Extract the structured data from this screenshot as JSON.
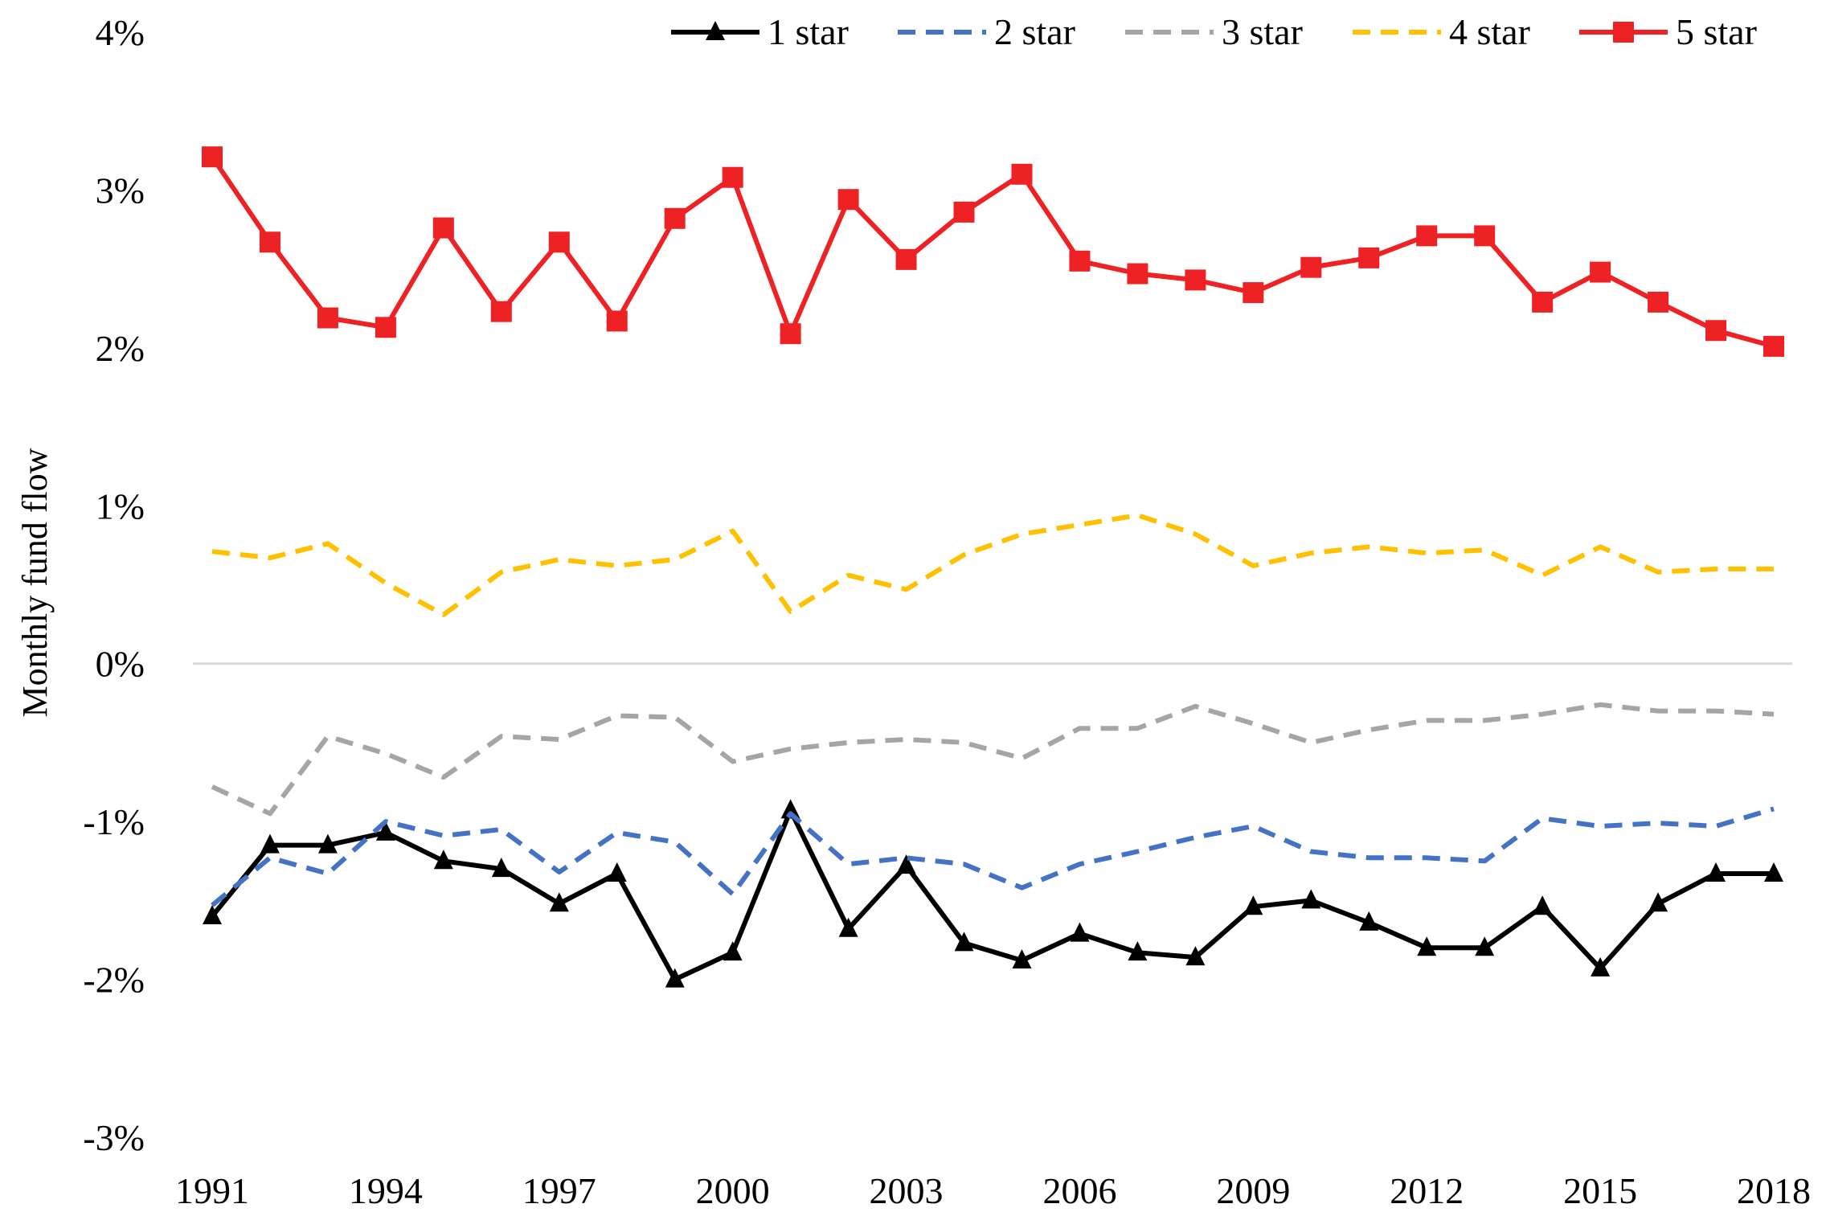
{
  "chart_data": {
    "type": "line",
    "title": "",
    "xlabel": "",
    "ylabel": "Monthly fund flow",
    "ylim": [
      -0.03,
      0.04
    ],
    "yticks": [
      {
        "value": 0.04,
        "label": "4%"
      },
      {
        "value": 0.03,
        "label": "3%"
      },
      {
        "value": 0.02,
        "label": "2%"
      },
      {
        "value": 0.01,
        "label": "1%"
      },
      {
        "value": 0.0,
        "label": "0%"
      },
      {
        "value": -0.01,
        "label": "-1%"
      },
      {
        "value": -0.02,
        "label": "-2%"
      },
      {
        "value": -0.03,
        "label": "-3%"
      }
    ],
    "xticks": [
      "1991",
      "1994",
      "1997",
      "2000",
      "2003",
      "2006",
      "2009",
      "2012",
      "2015",
      "2018"
    ],
    "x": [
      1991,
      1992,
      1993,
      1994,
      1995,
      1996,
      1997,
      1998,
      1999,
      2000,
      2001,
      2002,
      2003,
      2004,
      2005,
      2006,
      2007,
      2008,
      2009,
      2010,
      2011,
      2012,
      2013,
      2014,
      2015,
      2016,
      2017,
      2018
    ],
    "grid": false,
    "zero_line": true,
    "legend_position": "top",
    "series": [
      {
        "name": "1 star",
        "color": "#000000",
        "style": "solid",
        "marker": "triangle",
        "values": [
          -0.016,
          -0.0115,
          -0.0115,
          -0.0107,
          -0.0125,
          -0.013,
          -0.0152,
          -0.0133,
          -0.02,
          -0.0183,
          -0.0093,
          -0.0168,
          -0.0128,
          -0.0177,
          -0.0188,
          -0.0171,
          -0.0183,
          -0.0186,
          -0.0154,
          -0.015,
          -0.0164,
          -0.018,
          -0.018,
          -0.0154,
          -0.0193,
          -0.0152,
          -0.0133,
          -0.0133
        ]
      },
      {
        "name": "2 star",
        "color": "#4472C4",
        "style": "dashed",
        "marker": "none",
        "values": [
          -0.0153,
          -0.0123,
          -0.0133,
          -0.01,
          -0.0109,
          -0.0105,
          -0.0132,
          -0.0107,
          -0.0113,
          -0.0146,
          -0.0095,
          -0.0127,
          -0.0123,
          -0.0127,
          -0.0142,
          -0.0127,
          -0.0119,
          -0.011,
          -0.0103,
          -0.0119,
          -0.0123,
          -0.0123,
          -0.0125,
          -0.0098,
          -0.0103,
          -0.0101,
          -0.0103,
          -0.0092
        ]
      },
      {
        "name": "3 star",
        "color": "#A5A5A5",
        "style": "dashed",
        "marker": "none",
        "values": [
          -0.0078,
          -0.0095,
          -0.0046,
          -0.0057,
          -0.0072,
          -0.0046,
          -0.0048,
          -0.0033,
          -0.0034,
          -0.0062,
          -0.0054,
          -0.005,
          -0.0048,
          -0.005,
          -0.006,
          -0.0041,
          -0.0041,
          -0.0027,
          -0.0038,
          -0.005,
          -0.0042,
          -0.0036,
          -0.0036,
          -0.0032,
          -0.0026,
          -0.003,
          -0.003,
          -0.0032
        ]
      },
      {
        "name": "4 star",
        "color": "#FFC000",
        "style": "dashed",
        "marker": "none",
        "values": [
          0.0071,
          0.0067,
          0.0076,
          0.0051,
          0.0031,
          0.0058,
          0.0066,
          0.0062,
          0.0066,
          0.0084,
          0.0033,
          0.0056,
          0.0047,
          0.0069,
          0.0082,
          0.0088,
          0.0094,
          0.0082,
          0.0062,
          0.007,
          0.0074,
          0.007,
          0.0072,
          0.0056,
          0.0074,
          0.0058,
          0.006,
          0.006
        ]
      },
      {
        "name": "5 star",
        "color": "#EE2224",
        "style": "solid",
        "marker": "square",
        "values": [
          0.0321,
          0.0267,
          0.0219,
          0.0213,
          0.0276,
          0.0223,
          0.0267,
          0.0217,
          0.0282,
          0.0308,
          0.0209,
          0.0294,
          0.0256,
          0.0286,
          0.031,
          0.0255,
          0.0247,
          0.0243,
          0.0235,
          0.0251,
          0.0257,
          0.0271,
          0.0271,
          0.0229,
          0.0248,
          0.0229,
          0.0211,
          0.0201
        ]
      }
    ]
  }
}
